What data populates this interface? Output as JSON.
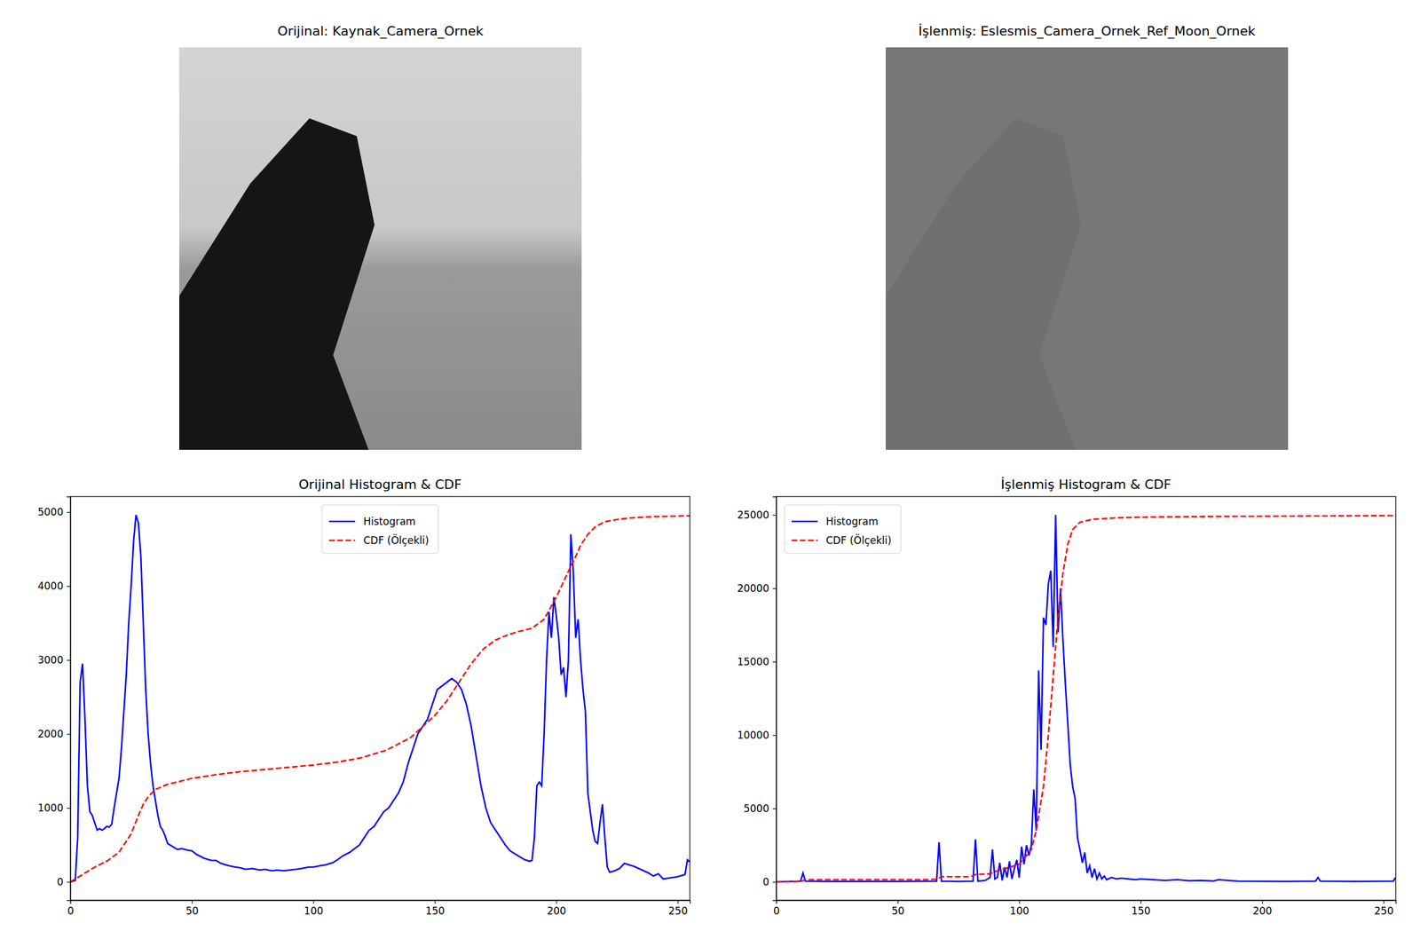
{
  "images": [
    {
      "title": "Orijinal: Kaynak_Camera_Ornek"
    },
    {
      "title": "İşlenmiş: Eslesmis_Camera_Ornek_Ref_Moon_Ornek"
    }
  ],
  "chart_data": [
    {
      "type": "line",
      "title": "Orijinal Histogram & CDF",
      "legend": "upper center",
      "grid": false,
      "xlim": [
        0,
        255
      ],
      "xticks": [
        0,
        50,
        100,
        150,
        200,
        250
      ],
      "ylim": [
        -248,
        5210
      ],
      "yticks": [
        0,
        1000,
        2000,
        3000,
        4000,
        5000
      ],
      "series": [
        {
          "name": "Histogram",
          "color": "#0000ff",
          "line_style": "solid",
          "x": [
            0,
            2,
            3,
            4,
            5,
            6,
            7,
            8,
            9,
            10,
            11,
            12,
            13,
            14,
            15,
            16,
            17,
            18,
            19,
            20,
            21,
            22,
            23,
            24,
            25,
            26,
            27,
            28,
            29,
            30,
            31,
            32,
            33,
            34,
            35,
            36,
            37,
            38,
            39,
            40,
            42,
            44,
            46,
            48,
            50,
            52,
            55,
            58,
            60,
            62,
            65,
            68,
            70,
            72,
            75,
            78,
            80,
            83,
            85,
            88,
            90,
            93,
            95,
            98,
            100,
            103,
            105,
            108,
            110,
            112,
            115,
            117,
            119,
            121,
            123,
            125,
            127,
            129,
            131,
            133,
            135,
            137,
            139,
            141,
            143,
            145,
            147,
            149,
            151,
            153,
            155,
            157,
            159,
            161,
            163,
            165,
            167,
            169,
            171,
            173,
            175,
            177,
            179,
            181,
            183,
            185,
            187,
            189,
            190,
            191,
            192,
            193,
            194,
            195,
            196,
            197,
            198,
            199,
            200,
            201,
            202,
            203,
            204,
            205,
            206,
            207,
            208,
            209,
            210,
            211,
            212,
            213,
            214,
            215,
            216,
            217,
            218,
            219,
            220,
            221,
            222,
            224,
            226,
            228,
            230,
            232,
            234,
            236,
            238,
            240,
            242,
            244,
            246,
            248,
            250,
            252,
            253,
            254,
            255
          ],
          "values": [
            0,
            20,
            600,
            2700,
            2950,
            2200,
            1300,
            950,
            900,
            800,
            700,
            720,
            700,
            720,
            750,
            740,
            780,
            1000,
            1200,
            1400,
            1800,
            2300,
            2800,
            3500,
            4000,
            4600,
            4960,
            4850,
            4400,
            3500,
            2600,
            2000,
            1600,
            1300,
            1100,
            900,
            750,
            700,
            620,
            520,
            480,
            440,
            450,
            430,
            420,
            370,
            320,
            290,
            290,
            250,
            220,
            200,
            190,
            170,
            180,
            160,
            170,
            150,
            160,
            150,
            160,
            170,
            180,
            200,
            200,
            220,
            230,
            260,
            300,
            350,
            400,
            450,
            500,
            600,
            700,
            750,
            850,
            950,
            1000,
            1100,
            1200,
            1350,
            1600,
            1800,
            2000,
            2100,
            2200,
            2400,
            2600,
            2650,
            2700,
            2750,
            2700,
            2600,
            2400,
            2100,
            1700,
            1300,
            1000,
            800,
            700,
            600,
            500,
            420,
            380,
            340,
            300,
            280,
            290,
            600,
            1300,
            1350,
            1300,
            2000,
            3000,
            3650,
            3300,
            3850,
            3600,
            3300,
            2800,
            2900,
            2500,
            3000,
            4700,
            4200,
            3300,
            3550,
            3000,
            2600,
            2300,
            1200,
            950,
            700,
            550,
            520,
            800,
            1050,
            600,
            200,
            130,
            150,
            180,
            250,
            230,
            210,
            180,
            150,
            120,
            80,
            110,
            40,
            50,
            60,
            70,
            90,
            100,
            300,
            270
          ]
        },
        {
          "name": "CDF (Ölçekli)",
          "color": "#ff0000",
          "line_style": "dashed",
          "x": [
            0,
            5,
            10,
            15,
            20,
            25,
            28,
            30,
            32,
            35,
            40,
            50,
            60,
            70,
            80,
            90,
            100,
            110,
            120,
            130,
            140,
            150,
            155,
            160,
            165,
            170,
            175,
            180,
            185,
            190,
            195,
            200,
            205,
            208,
            210,
            213,
            216,
            220,
            225,
            230,
            240,
            255
          ],
          "values": [
            0,
            100,
            200,
            280,
            400,
            650,
            900,
            1050,
            1150,
            1250,
            1320,
            1400,
            1450,
            1490,
            1520,
            1550,
            1580,
            1620,
            1680,
            1780,
            1950,
            2250,
            2450,
            2700,
            2950,
            3150,
            3270,
            3340,
            3390,
            3430,
            3550,
            3850,
            4200,
            4400,
            4550,
            4700,
            4800,
            4870,
            4900,
            4920,
            4940,
            4950
          ]
        }
      ]
    },
    {
      "type": "line",
      "title": "İşlenmiş Histogram & CDF",
      "legend": "upper left",
      "grid": false,
      "xlim": [
        0,
        255
      ],
      "xticks": [
        0,
        50,
        100,
        150,
        200,
        250
      ],
      "ylim": [
        -1250,
        26250
      ],
      "yticks": [
        0,
        5000,
        10000,
        15000,
        20000,
        25000
      ],
      "series": [
        {
          "name": "Histogram",
          "color": "#0000ff",
          "line_style": "solid",
          "x": [
            0,
            10,
            11,
            12,
            20,
            50,
            66,
            67,
            68,
            75,
            81,
            82,
            83,
            86,
            88,
            89,
            90,
            91,
            92,
            93,
            94,
            95,
            96,
            97,
            98,
            99,
            100,
            101,
            102,
            103,
            104,
            105,
            106,
            107,
            108,
            109,
            110,
            111,
            112,
            113,
            114,
            115,
            116,
            117,
            118,
            119,
            120,
            121,
            122,
            123,
            124,
            125,
            126,
            127,
            128,
            129,
            130,
            131,
            132,
            133,
            134,
            135,
            136,
            138,
            140,
            142,
            145,
            148,
            150,
            155,
            160,
            165,
            170,
            175,
            180,
            182,
            190,
            200,
            210,
            222,
            223,
            224,
            240,
            254,
            255
          ],
          "values": [
            0,
            50,
            600,
            50,
            30,
            30,
            50,
            2700,
            50,
            30,
            50,
            2900,
            50,
            100,
            300,
            2200,
            200,
            300,
            1300,
            100,
            1000,
            300,
            1400,
            200,
            900,
            1500,
            300,
            2400,
            1200,
            2500,
            1800,
            2500,
            6300,
            3500,
            14400,
            9000,
            18000,
            17500,
            20300,
            21200,
            16000,
            25000,
            17000,
            20000,
            16500,
            13500,
            10800,
            8000,
            6500,
            5700,
            3000,
            2200,
            1300,
            2000,
            600,
            1100,
            300,
            900,
            200,
            600,
            200,
            400,
            150,
            300,
            200,
            250,
            200,
            150,
            200,
            150,
            100,
            150,
            80,
            100,
            60,
            150,
            50,
            40,
            30,
            50,
            300,
            50,
            30,
            50,
            300
          ]
        },
        {
          "name": "CDF (Ölçekli)",
          "color": "#ff0000",
          "line_style": "dashed",
          "x": [
            0,
            10,
            12,
            60,
            66,
            68,
            80,
            82,
            88,
            90,
            95,
            100,
            103,
            105,
            107,
            110,
            112,
            114,
            116,
            118,
            120,
            122,
            125,
            130,
            140,
            150,
            180,
            255
          ],
          "values": [
            0,
            20,
            150,
            150,
            180,
            350,
            350,
            500,
            550,
            700,
            950,
            1200,
            1800,
            2200,
            3500,
            6500,
            10000,
            14000,
            18000,
            21000,
            23000,
            24000,
            24500,
            24700,
            24800,
            24850,
            24900,
            24950
          ]
        }
      ]
    }
  ]
}
